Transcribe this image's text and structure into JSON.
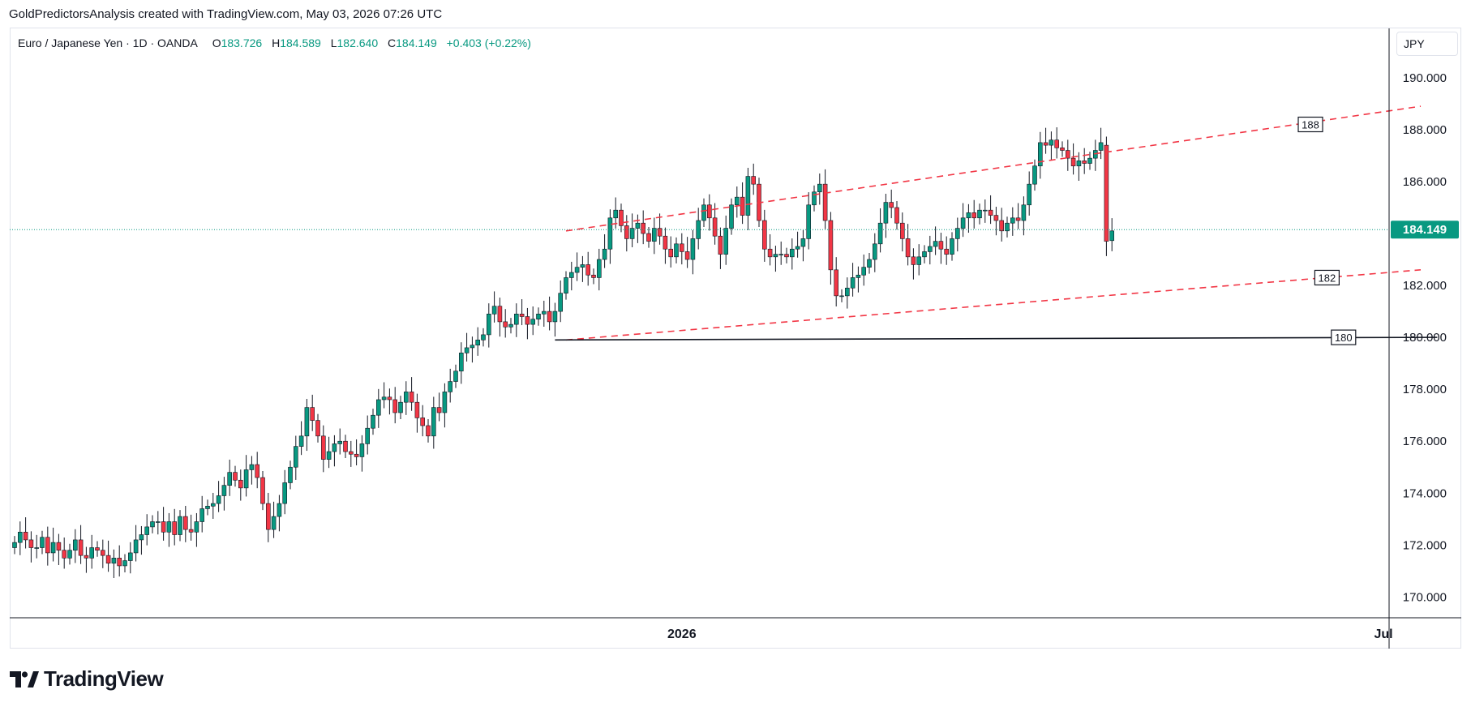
{
  "header": {
    "text": "GoldPredictorsAnalysis created with TradingView.com, May 03, 2026 07:26 UTC"
  },
  "legend": {
    "symbol": "Euro / Japanese Yen · 1D · OANDA",
    "open_label": "O",
    "open": "183.726",
    "high_label": "H",
    "high": "184.589",
    "low_label": "L",
    "low": "182.640",
    "close_label": "C",
    "close": "184.149",
    "change": "+0.403 (+0.22%)"
  },
  "currency": "JPY",
  "brand": {
    "name": "TradingView"
  },
  "colors": {
    "up": "#089981",
    "down": "#f23645",
    "channel": "#f23645",
    "support": "#131722",
    "last_price": "#089981"
  },
  "chart_data": {
    "type": "candlestick",
    "symbol": "EUR/JPY",
    "interval": "1D",
    "price_scale": {
      "ticks": [
        "170.000",
        "172.000",
        "174.000",
        "176.000",
        "178.000",
        "180.000",
        "182.000",
        "184.000",
        "186.000",
        "188.000",
        "190.000"
      ],
      "ylim": [
        169.2,
        191.9
      ]
    },
    "time_scale": {
      "labels": [
        "2026",
        "Jul"
      ],
      "label_positions_bar_index": [
        121,
        298
      ],
      "bars_visible": 225
    },
    "last_price": "184.149",
    "annotations": [
      {
        "type": "dashed_line",
        "name": "channel-upper",
        "from": {
          "bar": 100,
          "price": 184.1
        },
        "to": {
          "bar": 255,
          "price": 188.9
        }
      },
      {
        "type": "dashed_line",
        "name": "channel-lower",
        "from": {
          "bar": 100,
          "price": 179.9
        },
        "to": {
          "bar": 255,
          "price": 182.6
        }
      },
      {
        "type": "line",
        "name": "support",
        "from": {
          "bar": 98,
          "price": 179.9
        },
        "to": {
          "bar": 258,
          "price": 180.0
        }
      },
      {
        "type": "label",
        "text": "188",
        "bar": 235,
        "price": 188.2
      },
      {
        "type": "label",
        "text": "182",
        "bar": 238,
        "price": 182.3
      },
      {
        "type": "label",
        "text": "180",
        "bar": 241,
        "price": 180.0
      }
    ],
    "series_shape": "close",
    "close": [
      172.1,
      172.5,
      172.2,
      171.9,
      171.9,
      172.3,
      171.7,
      172.1,
      171.8,
      171.5,
      171.8,
      172.2,
      171.6,
      171.5,
      171.9,
      171.8,
      171.6,
      171.3,
      171.5,
      171.2,
      171.4,
      171.7,
      172.2,
      172.4,
      172.7,
      172.9,
      172.9,
      172.5,
      172.9,
      172.4,
      173.1,
      172.6,
      172.5,
      172.9,
      173.4,
      173.5,
      173.6,
      173.9,
      174.3,
      174.8,
      174.5,
      174.2,
      174.9,
      175.1,
      174.6,
      173.6,
      172.6,
      173.1,
      173.6,
      174.4,
      175.0,
      175.8,
      176.2,
      177.3,
      176.8,
      176.2,
      175.3,
      175.6,
      175.9,
      176.0,
      175.6,
      175.5,
      175.4,
      175.9,
      176.5,
      177.0,
      177.6,
      177.7,
      177.6,
      177.1,
      177.5,
      177.9,
      177.5,
      176.9,
      176.6,
      176.2,
      177.3,
      177.1,
      177.9,
      178.3,
      178.7,
      179.4,
      179.6,
      179.7,
      179.9,
      180.1,
      180.9,
      181.2,
      180.6,
      180.4,
      180.5,
      180.9,
      180.8,
      180.5,
      180.7,
      180.9,
      181.0,
      180.6,
      181.0,
      181.7,
      182.3,
      182.5,
      182.7,
      182.8,
      182.4,
      182.3,
      183.0,
      183.4,
      184.6,
      184.9,
      184.3,
      183.8,
      184.2,
      184.4,
      184.0,
      183.7,
      184.2,
      183.9,
      183.4,
      183.1,
      183.6,
      183.3,
      183.0,
      183.8,
      184.5,
      185.1,
      184.6,
      183.9,
      183.2,
      184.2,
      185.1,
      185.4,
      184.7,
      186.2,
      185.9,
      184.5,
      183.4,
      183.1,
      183.2,
      183.2,
      183.1,
      183.4,
      183.5,
      183.8,
      185.1,
      185.6,
      185.9,
      184.5,
      182.6,
      181.6,
      181.6,
      181.9,
      182.3,
      182.4,
      182.7,
      183.0,
      183.6,
      184.4,
      185.2,
      185.0,
      184.4,
      183.8,
      183.1,
      182.8,
      183.1,
      183.3,
      183.5,
      183.7,
      183.4,
      183.2,
      183.8,
      184.2,
      184.6,
      184.8,
      184.6,
      184.9,
      184.9,
      184.7,
      184.5,
      184.1,
      184.4,
      184.6,
      184.5,
      185.1,
      185.9,
      186.6,
      187.5,
      187.4,
      187.6,
      187.3,
      187.2,
      186.9,
      186.6,
      186.8,
      186.7,
      186.9,
      187.2,
      187.5,
      183.7,
      184.1
    ]
  }
}
